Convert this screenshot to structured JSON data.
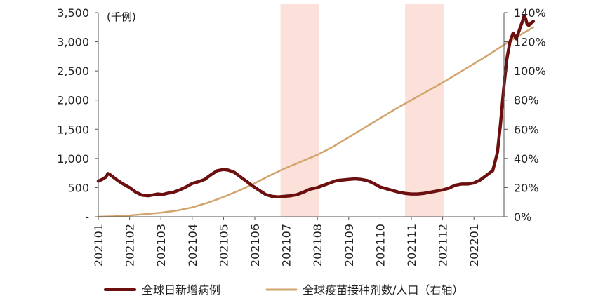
{
  "chart_data": {
    "type": "line",
    "unit_left": "(千例)",
    "x_ticks": [
      "202101",
      "202102",
      "202103",
      "202104",
      "202105",
      "202106",
      "202107",
      "202108",
      "202109",
      "202110",
      "202111",
      "202112",
      "202201"
    ],
    "y_left": {
      "min": 0,
      "max": 3500,
      "ticks": [
        "-",
        "500",
        "1,000",
        "1,500",
        "2,000",
        "2,500",
        "3,000",
        "3,500"
      ],
      "tick_values": [
        0,
        500,
        1000,
        1500,
        2000,
        2500,
        3000,
        3500
      ]
    },
    "y_right": {
      "min": 0,
      "max": 140,
      "ticks": [
        "0%",
        "20%",
        "40%",
        "60%",
        "80%",
        "100%",
        "120%",
        "140%"
      ],
      "tick_values": [
        0,
        20,
        40,
        60,
        80,
        100,
        120,
        140
      ]
    },
    "highlight_ranges": [
      {
        "start": 5.82,
        "end": 7.06
      },
      {
        "start": 9.8,
        "end": 11.05
      }
    ],
    "highlight_color": "#fbdcd3",
    "series": [
      {
        "name": "全球日新增病例",
        "axis": "left",
        "color": "#6b0f0f",
        "x": [
          0.0,
          0.12,
          0.24,
          0.31,
          0.38,
          0.5,
          0.65,
          0.8,
          1.0,
          1.2,
          1.4,
          1.6,
          1.8,
          1.9,
          2.05,
          2.2,
          2.4,
          2.6,
          2.8,
          3.0,
          3.2,
          3.4,
          3.6,
          3.8,
          4.0,
          4.15,
          4.35,
          4.55,
          4.75,
          4.95,
          5.15,
          5.35,
          5.55,
          5.75,
          5.95,
          6.15,
          6.35,
          6.55,
          6.75,
          7.0,
          7.2,
          7.4,
          7.6,
          7.8,
          8.0,
          8.2,
          8.4,
          8.6,
          8.8,
          9.0,
          9.2,
          9.4,
          9.6,
          9.8,
          10.0,
          10.2,
          10.4,
          10.6,
          10.8,
          11.0,
          11.2,
          11.4,
          11.6,
          11.8,
          12.0,
          12.2,
          12.4,
          12.6,
          12.75,
          12.85,
          12.95,
          13.05,
          13.15,
          13.25,
          13.35,
          13.45,
          13.5,
          13.55,
          13.6,
          13.65,
          13.7,
          13.75,
          13.82,
          13.9
        ],
        "values": [
          610,
          640,
          680,
          740,
          720,
          670,
          610,
          560,
          500,
          420,
          370,
          360,
          380,
          390,
          380,
          400,
          420,
          460,
          510,
          570,
          600,
          640,
          720,
          790,
          810,
          800,
          760,
          680,
          600,
          520,
          450,
          380,
          350,
          340,
          350,
          360,
          380,
          420,
          470,
          500,
          540,
          580,
          620,
          630,
          640,
          650,
          640,
          620,
          570,
          510,
          480,
          450,
          420,
          400,
          390,
          390,
          400,
          420,
          440,
          460,
          490,
          540,
          560,
          560,
          580,
          630,
          710,
          790,
          1100,
          1600,
          2200,
          2700,
          3000,
          3150,
          3050,
          3200,
          3280,
          3350,
          3450,
          3400,
          3300,
          3280,
          3320,
          3350
        ]
      },
      {
        "name": "全球疫苗接种剂数/人口（右轴）",
        "axis": "right",
        "color": "#d2a46c",
        "x": [
          0.0,
          0.5,
          1.0,
          1.5,
          2.0,
          2.5,
          3.0,
          3.5,
          4.0,
          4.5,
          5.0,
          5.5,
          6.0,
          6.5,
          7.0,
          7.5,
          8.0,
          8.5,
          9.0,
          9.5,
          10.0,
          10.5,
          11.0,
          11.5,
          12.0,
          12.5,
          13.0,
          13.5,
          13.9
        ],
        "values": [
          0.0,
          0.3,
          0.9,
          1.8,
          2.8,
          4.2,
          6.4,
          9.6,
          13.5,
          18.0,
          23.0,
          28.5,
          33.5,
          38.0,
          42.5,
          48.0,
          54.5,
          61.0,
          67.5,
          74.0,
          80.0,
          86.0,
          92.0,
          98.5,
          105.0,
          111.5,
          118.5,
          125.0,
          130.0
        ]
      }
    ],
    "legend_position": "bottom",
    "grid": false
  }
}
